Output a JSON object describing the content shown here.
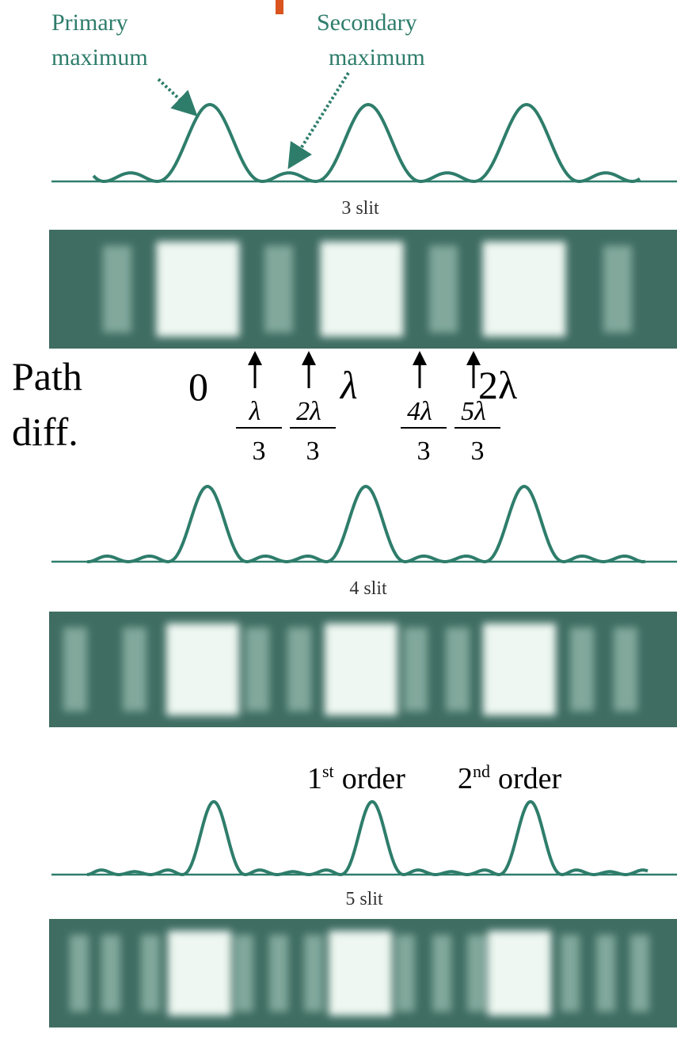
{
  "annotations": {
    "primary_maximum": [
      "Primary",
      "maximum"
    ],
    "secondary_maximum": [
      "Secondary",
      "maximum"
    ]
  },
  "panels": [
    {
      "label": "3 slit"
    },
    {
      "label": "4 slit"
    },
    {
      "label": "5 slit"
    }
  ],
  "path_diff": {
    "label": [
      "Path",
      "diff."
    ],
    "marks": [
      "0",
      "λ",
      "2λ"
    ],
    "fractions": [
      {
        "num": "λ",
        "den": "3"
      },
      {
        "num": "2λ",
        "den": "3"
      },
      {
        "num": "4λ",
        "den": "3"
      },
      {
        "num": "5λ",
        "den": "3"
      }
    ]
  },
  "orders": [
    {
      "number": "1",
      "suffix": "st",
      "word": "order"
    },
    {
      "number": "2",
      "suffix": "nd",
      "word": "order"
    }
  ]
}
